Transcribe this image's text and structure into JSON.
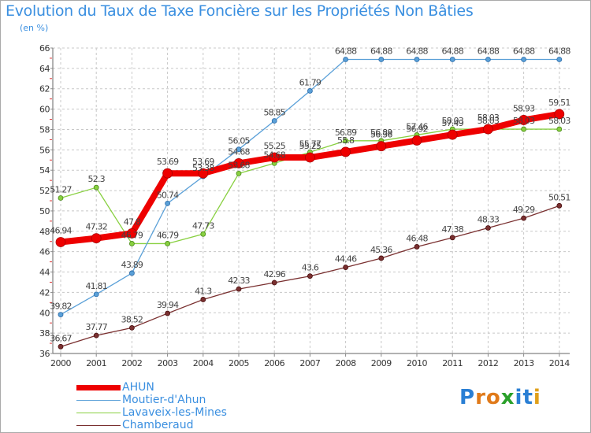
{
  "chart_data": {
    "type": "line",
    "title": "Evolution du Taux de Taxe Foncière sur les Propriétés Non Bâties",
    "ylabel": "(en %)",
    "xlabel": "",
    "categories": [
      "2000",
      "2001",
      "2002",
      "2003",
      "2004",
      "2005",
      "2006",
      "2007",
      "2008",
      "2009",
      "2010",
      "2011",
      "2012",
      "2013",
      "2014"
    ],
    "ylim": [
      36,
      66
    ],
    "yticks": [
      36,
      38,
      40,
      42,
      44,
      46,
      48,
      50,
      52,
      54,
      56,
      58,
      60,
      62,
      64,
      66
    ],
    "grid": "dashed",
    "legend_position": "bottom-left",
    "series": [
      {
        "name": "AHUN",
        "color": "#ee0000",
        "values": [
          46.94,
          47.32,
          47.8,
          53.69,
          53.69,
          54.68,
          55.25,
          55.25,
          55.8,
          56.36,
          56.92,
          57.49,
          58.03,
          58.93,
          59.51
        ],
        "labels": [
          "46.94",
          "47.32",
          "47.8",
          "53.69",
          "53.69",
          "54.68",
          "55.25",
          "55.25",
          "55.8",
          "56.36",
          "56.92",
          "57.49",
          "58.03",
          "58.93",
          "59.51"
        ]
      },
      {
        "name": "Moutier-d'Ahun",
        "color": "#5aa0d8",
        "values": [
          39.82,
          41.81,
          43.89,
          50.74,
          53.38,
          56.05,
          58.85,
          61.79,
          64.88,
          64.88,
          64.88,
          64.88,
          64.88,
          64.88,
          64.88
        ],
        "labels": [
          "39.82",
          "41.81",
          "43.89",
          "50.74",
          "53.38",
          "56.05",
          "58.85",
          "61.79",
          "64.88",
          "64.88",
          "64.88",
          "64.88",
          "64.88",
          "64.88",
          "64.88"
        ]
      },
      {
        "name": "Lavaveix-les-Mines",
        "color": "#88d040",
        "values": [
          51.27,
          52.3,
          46.79,
          46.79,
          47.73,
          53.68,
          54.68,
          55.77,
          56.89,
          56.89,
          57.46,
          58.03,
          58.03,
          58.03,
          58.03
        ],
        "labels": [
          "51.27",
          "52.3",
          "46.79",
          "46.79",
          "47.73",
          "53.68",
          "54.68",
          "55.77",
          "56.89",
          "56.89",
          "57.46",
          "58.03",
          "58.03",
          "58.03",
          "58.03"
        ]
      },
      {
        "name": "Chamberaud",
        "color": "#7a3030",
        "values": [
          36.67,
          37.77,
          38.52,
          39.94,
          41.3,
          42.33,
          42.96,
          43.6,
          44.46,
          45.36,
          46.48,
          47.38,
          48.33,
          49.29,
          50.51
        ],
        "labels": [
          "36.67",
          "37.77",
          "38.52",
          "39.94",
          "41.3",
          "42.33",
          "42.96",
          "43.6",
          "44.46",
          "45.36",
          "46.48",
          "47.38",
          "48.33",
          "49.29",
          "50.51"
        ]
      }
    ]
  },
  "brand": {
    "text": "Proxiti",
    "letter_colors": [
      "#2a7fd4",
      "#e07a1a",
      "#e07a1a",
      "#2aa02a",
      "#2a7fd4",
      "#2a7fd4",
      "#e0a01a"
    ]
  }
}
